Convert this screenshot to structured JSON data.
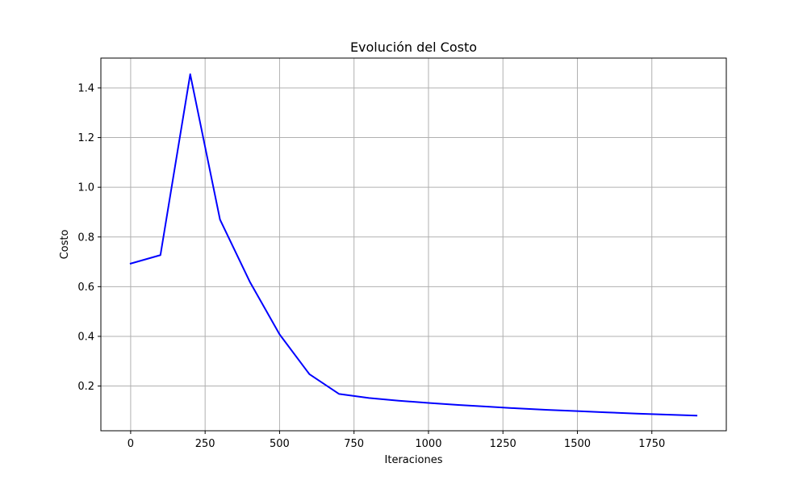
{
  "chart_data": {
    "type": "line",
    "title": "Evolución del Costo",
    "xlabel": "Iteraciones",
    "ylabel": "Costo",
    "xlim": [
      -100,
      2000
    ],
    "ylim": [
      0.02,
      1.52
    ],
    "x_ticks": [
      0,
      250,
      500,
      750,
      1000,
      1250,
      1500,
      1750
    ],
    "x_tick_labels": [
      "0",
      "250",
      "500",
      "750",
      "1000",
      "1250",
      "1500",
      "1750"
    ],
    "y_ticks": [
      0.2,
      0.4,
      0.6,
      0.8,
      1.0,
      1.2,
      1.4
    ],
    "y_tick_labels": [
      "0.2",
      "0.4",
      "0.6",
      "0.8",
      "1.0",
      "1.2",
      "1.4"
    ],
    "grid": true,
    "legend": "none",
    "series": [
      {
        "color": "#0000ff",
        "x": [
          0,
          100,
          200,
          300,
          400,
          500,
          600,
          700,
          800,
          900,
          1000,
          1100,
          1200,
          1300,
          1400,
          1500,
          1600,
          1700,
          1800,
          1900
        ],
        "y": [
          0.693,
          0.727,
          1.455,
          0.87,
          0.62,
          0.408,
          0.248,
          0.168,
          0.152,
          0.141,
          0.132,
          0.124,
          0.117,
          0.11,
          0.104,
          0.099,
          0.094,
          0.089,
          0.085,
          0.081
        ]
      }
    ],
    "grid_color": "#b0b0b0",
    "axes_color": "#000000"
  }
}
